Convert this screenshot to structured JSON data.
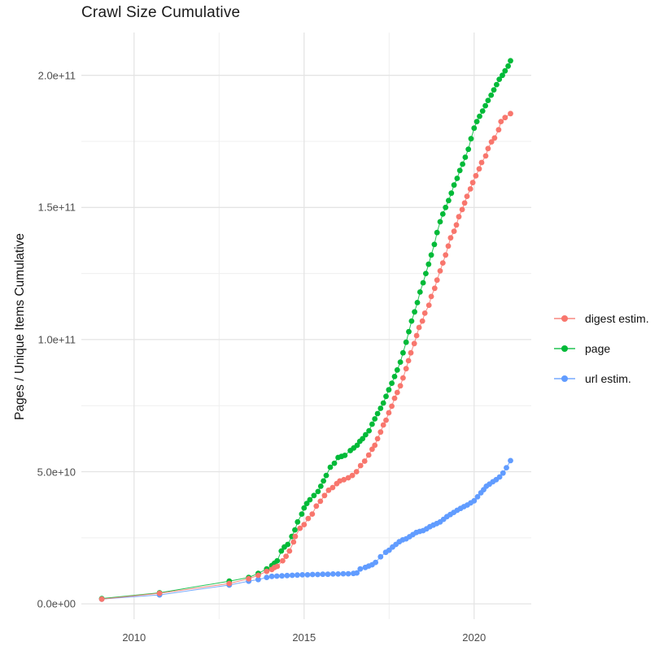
{
  "title": "Crawl Size Cumulative",
  "y_axis_title": "Pages / Unique Items Cumulative",
  "legend": {
    "position": "right",
    "items": [
      {
        "label": "digest estim.",
        "color": "#F8766D"
      },
      {
        "label": "page",
        "color": "#00BA38"
      },
      {
        "label": "url estim.",
        "color": "#619CFF"
      }
    ]
  },
  "chart_data": {
    "type": "scatter",
    "title": "Crawl Size Cumulative",
    "xlabel": "",
    "ylabel": "Pages / Unique Items Cumulative",
    "grid": true,
    "legend_position": "right",
    "value_unit": "1e9 items (billions)",
    "xlim": [
      2008.45,
      2021.68
    ],
    "ylim_e9": [
      -5.8,
      216.2
    ],
    "x_ticks": [
      {
        "v": 2010,
        "label": "2010"
      },
      {
        "v": 2015,
        "label": "2015"
      },
      {
        "v": 2020,
        "label": "2020"
      }
    ],
    "x_minor": [
      2012.5,
      2017.5
    ],
    "y_ticks": [
      {
        "v": 0,
        "label": "0.0e+00"
      },
      {
        "v": 50,
        "label": "5.0e+10"
      },
      {
        "v": 100,
        "label": "1.0e+11"
      },
      {
        "v": 150,
        "label": "1.5e+11"
      },
      {
        "v": 200,
        "label": "2.0e+11"
      }
    ],
    "y_minor": [
      25,
      75,
      125,
      175
    ],
    "series": [
      {
        "name": "url estim.",
        "color": "#619CFF",
        "points": [
          [
            2009.05,
            1.8
          ],
          [
            2010.75,
            3.4
          ],
          [
            2012.8,
            7.1
          ],
          [
            2013.37,
            8.6
          ],
          [
            2013.65,
            9.2
          ],
          [
            2013.9,
            10.0
          ],
          [
            2014.05,
            10.4
          ],
          [
            2014.2,
            10.5
          ],
          [
            2014.35,
            10.6
          ],
          [
            2014.5,
            10.7
          ],
          [
            2014.65,
            10.8
          ],
          [
            2014.8,
            10.9
          ],
          [
            2014.95,
            11.0
          ],
          [
            2015.1,
            11.0
          ],
          [
            2015.25,
            11.1
          ],
          [
            2015.4,
            11.1
          ],
          [
            2015.55,
            11.2
          ],
          [
            2015.7,
            11.2
          ],
          [
            2015.85,
            11.3
          ],
          [
            2016.0,
            11.3
          ],
          [
            2016.15,
            11.4
          ],
          [
            2016.3,
            11.4
          ],
          [
            2016.45,
            11.5
          ],
          [
            2016.55,
            11.7
          ],
          [
            2016.65,
            13.2
          ],
          [
            2016.8,
            13.8
          ],
          [
            2016.9,
            14.3
          ],
          [
            2017.0,
            14.8
          ],
          [
            2017.1,
            15.7
          ],
          [
            2017.25,
            17.8
          ],
          [
            2017.4,
            19.5
          ],
          [
            2017.5,
            20.3
          ],
          [
            2017.6,
            21.5
          ],
          [
            2017.7,
            22.5
          ],
          [
            2017.8,
            23.5
          ],
          [
            2017.9,
            24.2
          ],
          [
            2018.0,
            24.6
          ],
          [
            2018.1,
            25.4
          ],
          [
            2018.2,
            26.2
          ],
          [
            2018.3,
            27.0
          ],
          [
            2018.4,
            27.4
          ],
          [
            2018.5,
            27.7
          ],
          [
            2018.6,
            28.4
          ],
          [
            2018.7,
            29.2
          ],
          [
            2018.8,
            29.8
          ],
          [
            2018.9,
            30.4
          ],
          [
            2019.0,
            31.0
          ],
          [
            2019.1,
            32.0
          ],
          [
            2019.2,
            33.0
          ],
          [
            2019.3,
            33.8
          ],
          [
            2019.4,
            34.6
          ],
          [
            2019.5,
            35.4
          ],
          [
            2019.6,
            36.1
          ],
          [
            2019.7,
            36.8
          ],
          [
            2019.8,
            37.4
          ],
          [
            2019.9,
            38.2
          ],
          [
            2020.0,
            39.0
          ],
          [
            2020.1,
            40.5
          ],
          [
            2020.2,
            42.0
          ],
          [
            2020.28,
            43.2
          ],
          [
            2020.36,
            44.5
          ],
          [
            2020.45,
            45.3
          ],
          [
            2020.55,
            46.2
          ],
          [
            2020.65,
            47.0
          ],
          [
            2020.75,
            48.0
          ],
          [
            2020.85,
            49.5
          ],
          [
            2020.95,
            51.5
          ],
          [
            2021.07,
            54.2
          ]
        ]
      },
      {
        "name": "page",
        "color": "#00BA38",
        "points": [
          [
            2009.05,
            2.0
          ],
          [
            2010.75,
            4.2
          ],
          [
            2012.8,
            8.6
          ],
          [
            2013.37,
            10.0
          ],
          [
            2013.65,
            11.5
          ],
          [
            2013.9,
            13.2
          ],
          [
            2014.05,
            14.5
          ],
          [
            2014.13,
            15.4
          ],
          [
            2014.21,
            16.3
          ],
          [
            2014.33,
            20.0
          ],
          [
            2014.42,
            21.5
          ],
          [
            2014.52,
            22.5
          ],
          [
            2014.64,
            25.5
          ],
          [
            2014.73,
            28.0
          ],
          [
            2014.81,
            31.0
          ],
          [
            2014.93,
            34.0
          ],
          [
            2015.0,
            36.3
          ],
          [
            2015.08,
            38.0
          ],
          [
            2015.17,
            39.4
          ],
          [
            2015.29,
            41.0
          ],
          [
            2015.41,
            42.5
          ],
          [
            2015.49,
            44.5
          ],
          [
            2015.57,
            46.5
          ],
          [
            2015.65,
            48.6
          ],
          [
            2015.77,
            51.7
          ],
          [
            2015.89,
            53.2
          ],
          [
            2016.0,
            55.4
          ],
          [
            2016.1,
            55.8
          ],
          [
            2016.2,
            56.2
          ],
          [
            2016.36,
            58.0
          ],
          [
            2016.46,
            59.0
          ],
          [
            2016.56,
            60.0
          ],
          [
            2016.64,
            61.5
          ],
          [
            2016.72,
            62.5
          ],
          [
            2016.81,
            64.0
          ],
          [
            2016.91,
            65.5
          ],
          [
            2017.0,
            68.0
          ],
          [
            2017.08,
            70.0
          ],
          [
            2017.16,
            72.0
          ],
          [
            2017.25,
            74.0
          ],
          [
            2017.33,
            76.0
          ],
          [
            2017.41,
            78.5
          ],
          [
            2017.49,
            81.0
          ],
          [
            2017.58,
            83.5
          ],
          [
            2017.66,
            86.0
          ],
          [
            2017.74,
            88.5
          ],
          [
            2017.83,
            91.5
          ],
          [
            2017.91,
            95.0
          ],
          [
            2018.0,
            99.0
          ],
          [
            2018.08,
            103.0
          ],
          [
            2018.16,
            107.0
          ],
          [
            2018.25,
            110.5
          ],
          [
            2018.33,
            114.0
          ],
          [
            2018.41,
            118.0
          ],
          [
            2018.5,
            121.5
          ],
          [
            2018.58,
            125.0
          ],
          [
            2018.66,
            128.5
          ],
          [
            2018.74,
            132.0
          ],
          [
            2018.83,
            136.0
          ],
          [
            2018.91,
            140.5
          ],
          [
            2019.0,
            144.6
          ],
          [
            2019.08,
            147.5
          ],
          [
            2019.16,
            150.0
          ],
          [
            2019.25,
            152.6
          ],
          [
            2019.33,
            155.4
          ],
          [
            2019.41,
            158.5
          ],
          [
            2019.5,
            161.0
          ],
          [
            2019.58,
            164.0
          ],
          [
            2019.66,
            166.4
          ],
          [
            2019.74,
            169.0
          ],
          [
            2019.83,
            172.0
          ],
          [
            2019.91,
            176.0
          ],
          [
            2020.0,
            180.0
          ],
          [
            2020.08,
            182.5
          ],
          [
            2020.16,
            184.5
          ],
          [
            2020.25,
            186.5
          ],
          [
            2020.33,
            188.5
          ],
          [
            2020.41,
            190.5
          ],
          [
            2020.5,
            192.5
          ],
          [
            2020.58,
            194.5
          ],
          [
            2020.66,
            196.5
          ],
          [
            2020.74,
            198.5
          ],
          [
            2020.83,
            200.0
          ],
          [
            2020.91,
            201.7
          ],
          [
            2021.0,
            203.5
          ],
          [
            2021.07,
            205.5
          ]
        ]
      },
      {
        "name": "digest estim.",
        "color": "#F8766D",
        "points": [
          [
            2009.05,
            1.8
          ],
          [
            2010.75,
            4.0
          ],
          [
            2012.8,
            7.7
          ],
          [
            2013.37,
            9.5
          ],
          [
            2013.65,
            10.8
          ],
          [
            2013.9,
            12.3
          ],
          [
            2014.05,
            13.0
          ],
          [
            2014.13,
            13.8
          ],
          [
            2014.21,
            14.2
          ],
          [
            2014.37,
            16.3
          ],
          [
            2014.47,
            18.0
          ],
          [
            2014.57,
            20.0
          ],
          [
            2014.69,
            23.4
          ],
          [
            2014.74,
            25.5
          ],
          [
            2014.88,
            28.6
          ],
          [
            2015.0,
            30.0
          ],
          [
            2015.12,
            32.3
          ],
          [
            2015.24,
            34.0
          ],
          [
            2015.36,
            37.0
          ],
          [
            2015.48,
            38.8
          ],
          [
            2015.6,
            41.0
          ],
          [
            2015.72,
            43.0
          ],
          [
            2015.84,
            44.0
          ],
          [
            2015.96,
            45.5
          ],
          [
            2016.05,
            46.5
          ],
          [
            2016.17,
            47.0
          ],
          [
            2016.3,
            47.7
          ],
          [
            2016.42,
            48.6
          ],
          [
            2016.54,
            50.0
          ],
          [
            2016.66,
            52.3
          ],
          [
            2016.78,
            54.0
          ],
          [
            2016.9,
            56.3
          ],
          [
            2017.0,
            58.5
          ],
          [
            2017.08,
            60.0
          ],
          [
            2017.16,
            62.5
          ],
          [
            2017.25,
            65.0
          ],
          [
            2017.33,
            67.7
          ],
          [
            2017.41,
            69.5
          ],
          [
            2017.49,
            72.3
          ],
          [
            2017.58,
            74.8
          ],
          [
            2017.66,
            77.8
          ],
          [
            2017.74,
            80.0
          ],
          [
            2017.83,
            82.5
          ],
          [
            2017.91,
            85.5
          ],
          [
            2018.0,
            89.0
          ],
          [
            2018.07,
            92.0
          ],
          [
            2018.14,
            95.0
          ],
          [
            2018.24,
            98.5
          ],
          [
            2018.31,
            101.5
          ],
          [
            2018.38,
            104.6
          ],
          [
            2018.48,
            107.0
          ],
          [
            2018.55,
            110.0
          ],
          [
            2018.67,
            113.0
          ],
          [
            2018.74,
            116.3
          ],
          [
            2018.84,
            119.4
          ],
          [
            2018.91,
            122.5
          ],
          [
            2019.0,
            126.0
          ],
          [
            2019.08,
            129.0
          ],
          [
            2019.16,
            132.0
          ],
          [
            2019.24,
            135.4
          ],
          [
            2019.31,
            138.5
          ],
          [
            2019.41,
            141.0
          ],
          [
            2019.48,
            143.4
          ],
          [
            2019.55,
            146.5
          ],
          [
            2019.65,
            149.2
          ],
          [
            2019.72,
            151.7
          ],
          [
            2019.79,
            154.2
          ],
          [
            2019.89,
            157.0
          ],
          [
            2019.96,
            159.4
          ],
          [
            2020.05,
            162.0
          ],
          [
            2020.15,
            164.6
          ],
          [
            2020.22,
            167.0
          ],
          [
            2020.34,
            169.5
          ],
          [
            2020.41,
            172.3
          ],
          [
            2020.51,
            174.8
          ],
          [
            2020.6,
            176.3
          ],
          [
            2020.72,
            179.4
          ],
          [
            2020.79,
            182.5
          ],
          [
            2020.91,
            184.0
          ],
          [
            2021.07,
            185.5
          ]
        ]
      }
    ]
  }
}
